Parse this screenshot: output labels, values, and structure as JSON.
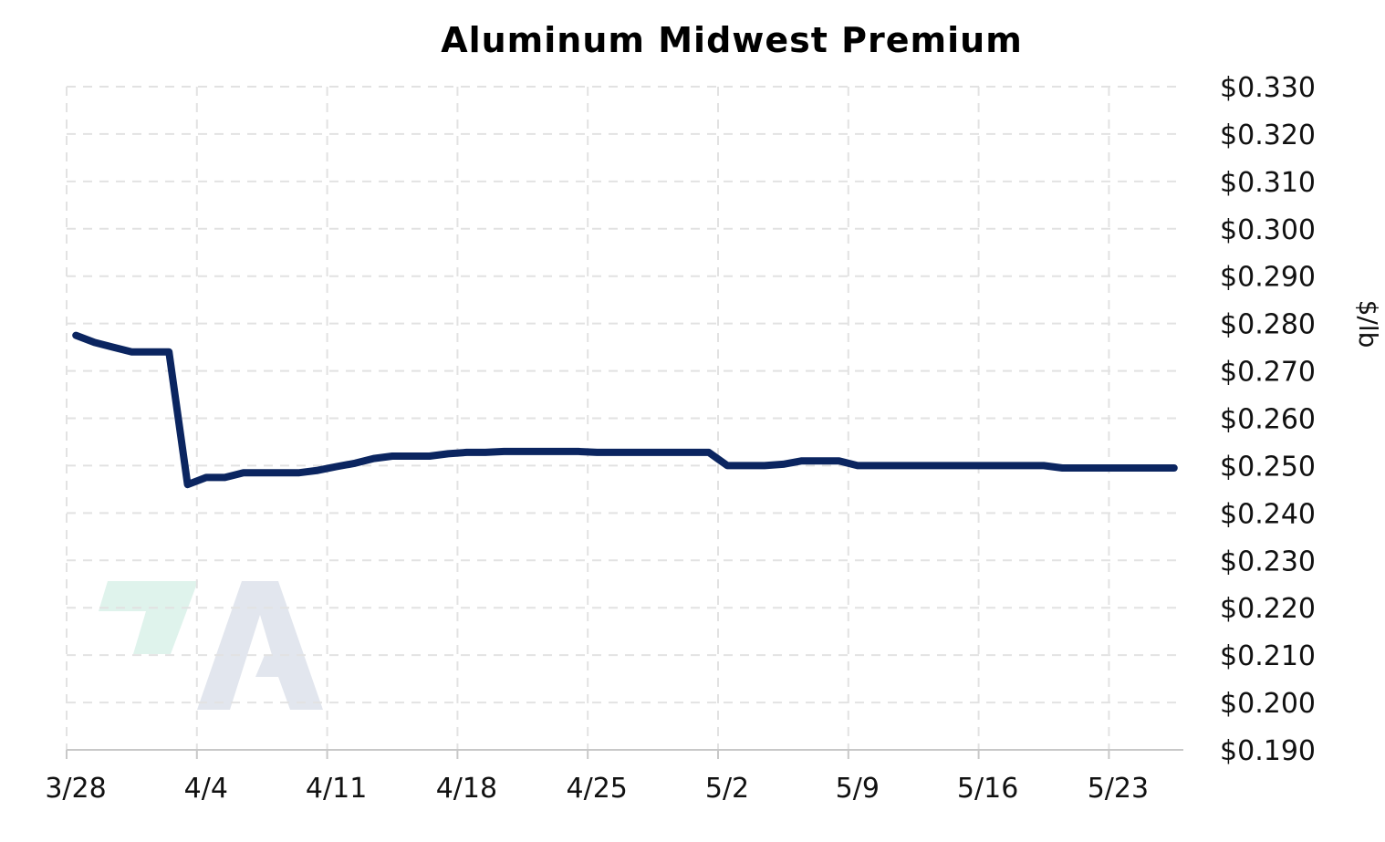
{
  "chart_data": {
    "type": "line",
    "title": "Aluminum Midwest Premium",
    "ylabel": "$/lb",
    "xlabel": "",
    "x_tick_labels": [
      "3/28",
      "4/4",
      "4/11",
      "4/18",
      "4/25",
      "5/2",
      "5/9",
      "5/16",
      "5/23"
    ],
    "x_tick_days": [
      0,
      7,
      14,
      21,
      28,
      35,
      42,
      49,
      56
    ],
    "xlim": [
      0,
      60
    ],
    "y_tick_labels": [
      "$0.330",
      "$0.320",
      "$0.310",
      "$0.300",
      "$0.290",
      "$0.280",
      "$0.270",
      "$0.260",
      "$0.250",
      "$0.240",
      "$0.230",
      "$0.220",
      "$0.210",
      "$0.200",
      "$0.190"
    ],
    "ylim": [
      0.19,
      0.33
    ],
    "grid": true,
    "legend": "none",
    "series": [
      {
        "color": "#0b2560",
        "x": [
          0.5,
          1.5,
          2.5,
          3.5,
          4.5,
          5.5,
          6.5,
          7.5,
          8.5,
          9.5,
          10.5,
          11.5,
          12.5,
          13.5,
          14.5,
          15.5,
          16.5,
          17.5,
          18.5,
          19.5,
          20.5,
          21.5,
          22.5,
          23.5,
          24.5,
          25.5,
          26.5,
          27.5,
          28.5,
          29.5,
          30.5,
          31.5,
          32.5,
          33.5,
          34.5,
          35.5,
          36.5,
          37.5,
          38.5,
          39.5,
          40.5,
          41.5,
          42.5,
          43.5,
          44.5,
          45.5,
          46.5,
          47.5,
          48.5,
          49.5,
          50.5,
          51.5,
          52.5,
          53.5,
          54.5,
          55.5,
          56.5,
          57.5,
          58.5,
          59.5
        ],
        "y": [
          0.2775,
          0.276,
          0.275,
          0.274,
          0.274,
          0.274,
          0.246,
          0.2475,
          0.2475,
          0.2485,
          0.2485,
          0.2485,
          0.2485,
          0.249,
          0.2498,
          0.2505,
          0.2515,
          0.252,
          0.252,
          0.252,
          0.2525,
          0.2528,
          0.2528,
          0.253,
          0.253,
          0.253,
          0.253,
          0.253,
          0.2528,
          0.2528,
          0.2528,
          0.2528,
          0.2528,
          0.2528,
          0.2528,
          0.25,
          0.25,
          0.25,
          0.2503,
          0.251,
          0.251,
          0.251,
          0.25,
          0.25,
          0.25,
          0.25,
          0.25,
          0.25,
          0.25,
          0.25,
          0.25,
          0.25,
          0.25,
          0.2495,
          0.2495,
          0.2495,
          0.2495,
          0.2495,
          0.2495,
          0.2495
        ]
      }
    ]
  }
}
